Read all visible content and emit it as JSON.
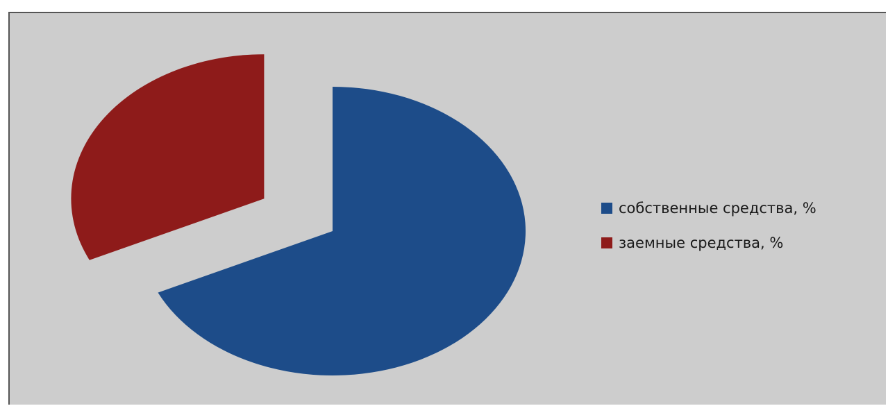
{
  "chart_data": {
    "type": "pie",
    "exploded": true,
    "slices": [
      {
        "label": "собственные средства, %",
        "value": 68,
        "color": "#1d4c89"
      },
      {
        "label": "заемные средства, %",
        "value": 32,
        "color": "#8e1b1a"
      }
    ],
    "legend_position": "right"
  }
}
